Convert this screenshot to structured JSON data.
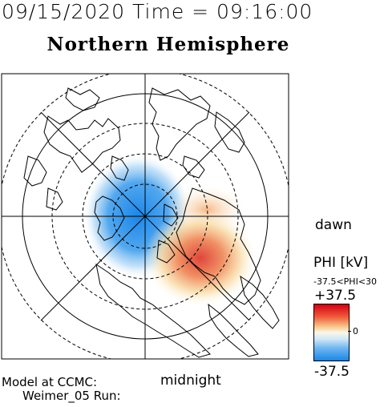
{
  "header": {
    "datetime": "09/15/2020 Time = 09:16:00",
    "hemisphere": "Northern Hemisphere"
  },
  "map": {
    "dawn_label": "dawn",
    "midnight_label": "midnight",
    "positive_cell_color": "#e0453a",
    "negative_cell_color": "#2a8de8"
  },
  "colorbar": {
    "title": "PHI [kV]",
    "range_text": "-37.5<PHI<30",
    "max_label": "+37.5",
    "zero_label": "0",
    "min_label": "-37.5",
    "max_color": "#d40015",
    "min_color": "#1a86e8"
  },
  "footer": {
    "model_line": "Model at CCMC:",
    "run_line": "Weimer_05 Run:"
  }
}
